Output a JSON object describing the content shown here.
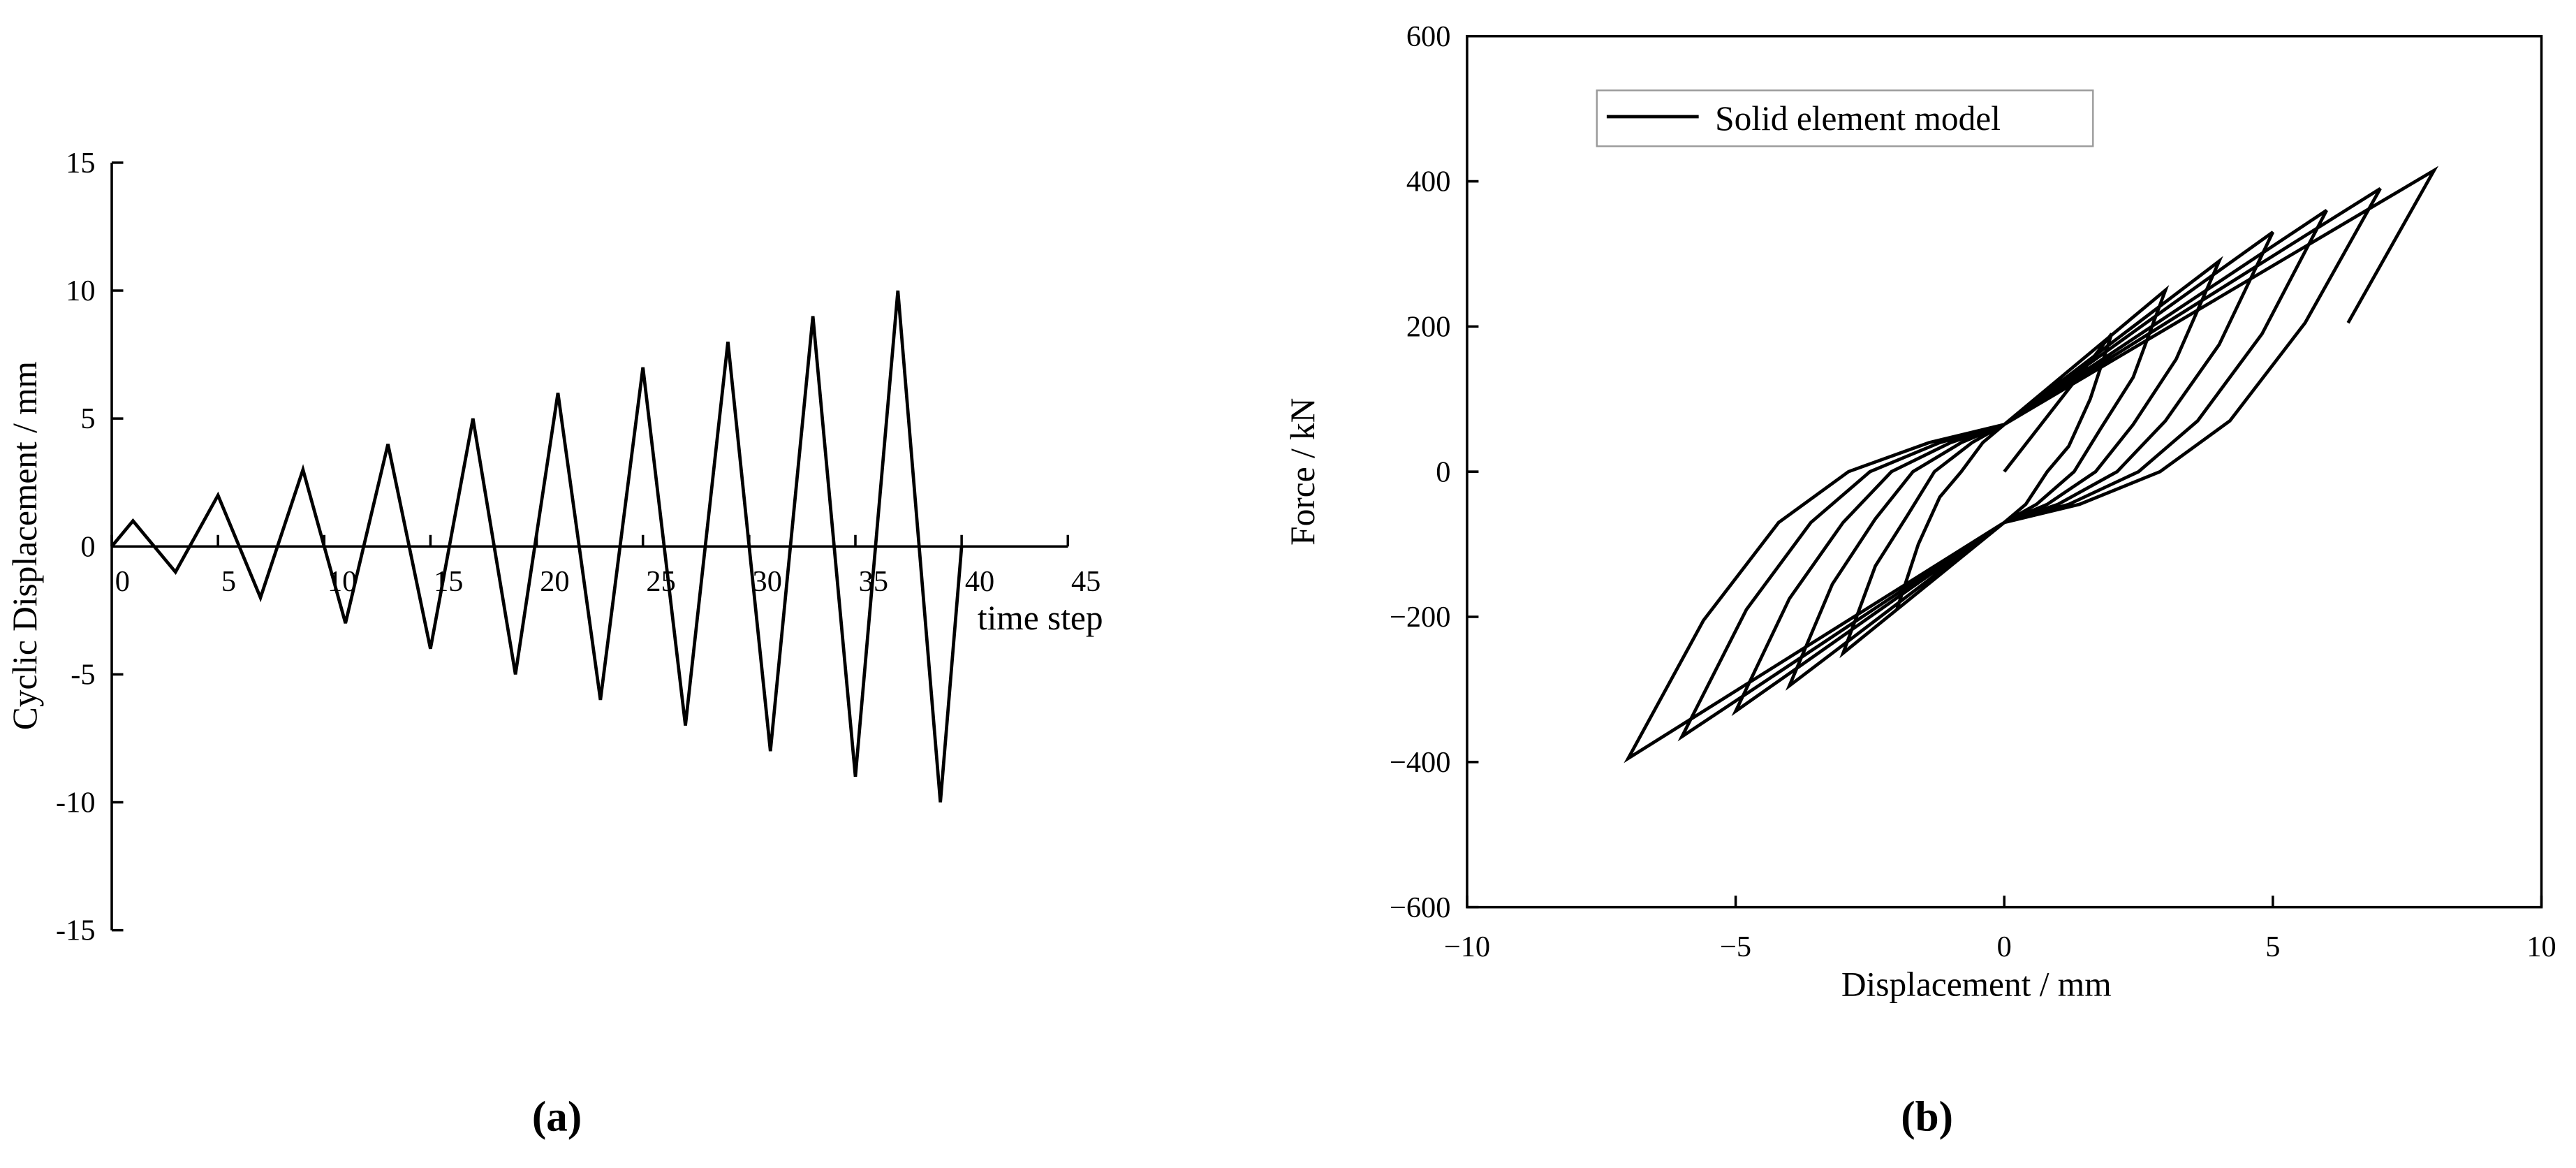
{
  "chart_data": [
    {
      "type": "line",
      "xlabel": "time step",
      "ylabel": "Cyclic Displacement / mm",
      "caption": "(a)",
      "series": [
        {
          "color": "#000000",
          "x": [
            0,
            1,
            3,
            5,
            7,
            9,
            11,
            13,
            15,
            17,
            19,
            21,
            23,
            25,
            27,
            29,
            31,
            33,
            35,
            37,
            39,
            40
          ],
          "values": [
            0,
            1,
            -1,
            2,
            -2,
            3,
            -3,
            4,
            -4,
            5,
            -5,
            6,
            -6,
            7,
            -7,
            8,
            -8,
            9,
            -9,
            10,
            -10,
            0
          ]
        }
      ],
      "xlim": [
        0,
        45
      ],
      "xticks": [
        0,
        5,
        10,
        15,
        20,
        25,
        30,
        35,
        40,
        45
      ],
      "ylim": [
        -15,
        15
      ],
      "yticks": [
        -15,
        -10,
        -5,
        0,
        5,
        10,
        15
      ]
    },
    {
      "type": "line",
      "xlabel": "Displacement / mm",
      "ylabel": "Force / kN",
      "caption": "(b)",
      "legend": "upper left",
      "series": [
        {
          "name": "Solid element model",
          "color": "#000000",
          "x": [
            0,
            2,
            1.6,
            1.2,
            0.8,
            0.4,
            0,
            -2,
            -1.6,
            -1.2,
            -0.8,
            -0.4,
            0,
            3,
            2.4,
            1.8,
            1.3,
            0.6,
            0,
            -3,
            -2.4,
            -1.8,
            -1.3,
            -0.6,
            0,
            4,
            3.2,
            2.4,
            1.7,
            0.8,
            0,
            -4,
            -3.2,
            -2.4,
            -1.7,
            -0.8,
            0,
            5,
            4,
            3,
            2.1,
            1,
            0,
            -5,
            -4,
            -3,
            -2.1,
            -1,
            0,
            6,
            4.8,
            3.6,
            2.5,
            1.2,
            0,
            -6,
            -4.8,
            -3.6,
            -2.5,
            -1.2,
            0,
            7,
            5.6,
            4.2,
            2.9,
            1.4,
            0,
            -7,
            -5.6,
            -4.2,
            -2.9,
            -1.4,
            0,
            8,
            6.4
          ],
          "values": [
            0,
            190,
            100,
            35,
            0,
            -45,
            -70,
            -190,
            -100,
            -35,
            0,
            40,
            65,
            250,
            130,
            60,
            0,
            -45,
            -70,
            -250,
            -130,
            -60,
            0,
            40,
            65,
            290,
            155,
            65,
            0,
            -45,
            -70,
            -295,
            -155,
            -65,
            0,
            40,
            65,
            330,
            175,
            70,
            0,
            -45,
            -70,
            -330,
            -175,
            -70,
            0,
            40,
            65,
            360,
            190,
            70,
            0,
            -45,
            -70,
            -365,
            -190,
            -70,
            0,
            40,
            65,
            390,
            205,
            70,
            0,
            -45,
            -70,
            -395,
            -205,
            -70,
            0,
            40,
            65,
            415,
            205
          ]
        }
      ],
      "xlim": [
        -10,
        10
      ],
      "xticks": [
        {
          "value": -10,
          "label": "−10"
        },
        {
          "value": -5,
          "label": "−5"
        },
        0,
        5,
        10
      ],
      "ylim": [
        -600,
        600
      ],
      "yticks": [
        {
          "value": -600,
          "label": "−600"
        },
        {
          "value": -400,
          "label": "−400"
        },
        {
          "value": -200,
          "label": "−200"
        },
        0,
        200,
        400,
        600
      ]
    }
  ]
}
